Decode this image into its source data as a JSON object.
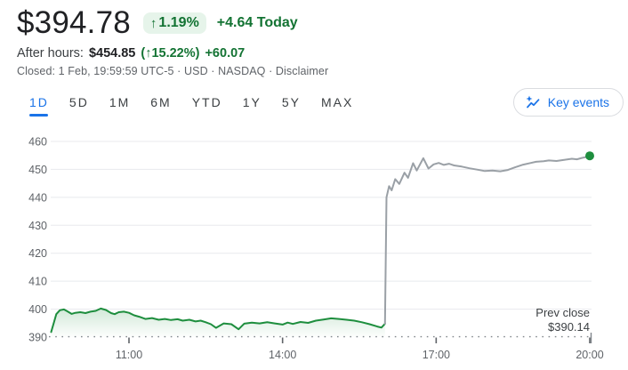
{
  "header": {
    "price": "$394.78",
    "badge": {
      "arrow": "↑",
      "percent": "1.19%"
    },
    "change_today": "+4.64 Today",
    "after_hours_label": "After hours:",
    "after_hours_price": "$454.85",
    "after_hours_pct": "(↑15.22%)",
    "after_hours_abs": "+60.07",
    "status_text": "Closed: 1 Feb, 19:59:59 UTC-5 · USD · NASDAQ · ",
    "disclaimer": "Disclaimer"
  },
  "tabs": [
    {
      "label": "1D",
      "active": true
    },
    {
      "label": "5D",
      "active": false
    },
    {
      "label": "1M",
      "active": false
    },
    {
      "label": "6M",
      "active": false
    },
    {
      "label": "YTD",
      "active": false
    },
    {
      "label": "1Y",
      "active": false
    },
    {
      "label": "5Y",
      "active": false
    },
    {
      "label": "MAX",
      "active": false
    }
  ],
  "key_events": {
    "label": "Key events"
  },
  "colors": {
    "accent_blue": "#1a73e8",
    "green_text": "#137333",
    "badge_bg": "#e6f4ea",
    "line_green": "#1e8e3e",
    "line_gray": "#9aa0a6",
    "grid": "#e8eaed",
    "axis_text": "#5f6368"
  },
  "chart_data": {
    "type": "line",
    "x_axis": {
      "unit": "hour_of_day",
      "range": [
        9.47,
        20
      ],
      "ticks": [
        {
          "t": 11,
          "label": "11:00"
        },
        {
          "t": 14,
          "label": "14:00"
        },
        {
          "t": 17,
          "label": "17:00"
        },
        {
          "t": 20,
          "label": "20:00"
        }
      ]
    },
    "y_axis": {
      "range": [
        390,
        462
      ],
      "ticks": [
        390,
        400,
        410,
        420,
        430,
        440,
        450,
        460
      ]
    },
    "grid": true,
    "prev_close": {
      "label": "Prev close",
      "display": "$390.14",
      "value": 390.14
    },
    "series": [
      {
        "name": "regular-session",
        "color": "#1e8e3e",
        "area": true,
        "points": [
          [
            9.48,
            391.8
          ],
          [
            9.53,
            395.0
          ],
          [
            9.58,
            398.2
          ],
          [
            9.65,
            399.6
          ],
          [
            9.73,
            399.9
          ],
          [
            9.8,
            399.2
          ],
          [
            9.88,
            398.3
          ],
          [
            9.95,
            398.7
          ],
          [
            10.05,
            398.9
          ],
          [
            10.15,
            398.6
          ],
          [
            10.25,
            399.1
          ],
          [
            10.35,
            399.4
          ],
          [
            10.45,
            400.2
          ],
          [
            10.55,
            399.7
          ],
          [
            10.65,
            398.6
          ],
          [
            10.72,
            398.2
          ],
          [
            10.8,
            398.9
          ],
          [
            10.9,
            399.1
          ],
          [
            11.0,
            398.7
          ],
          [
            11.1,
            397.8
          ],
          [
            11.2,
            397.3
          ],
          [
            11.32,
            396.5
          ],
          [
            11.45,
            396.8
          ],
          [
            11.58,
            396.2
          ],
          [
            11.7,
            396.5
          ],
          [
            11.82,
            396.1
          ],
          [
            11.95,
            396.4
          ],
          [
            12.05,
            395.9
          ],
          [
            12.18,
            396.2
          ],
          [
            12.3,
            395.6
          ],
          [
            12.4,
            395.9
          ],
          [
            12.5,
            395.3
          ],
          [
            12.6,
            394.6
          ],
          [
            12.7,
            393.3
          ],
          [
            12.85,
            394.9
          ],
          [
            13.0,
            394.6
          ],
          [
            13.14,
            392.8
          ],
          [
            13.25,
            394.8
          ],
          [
            13.4,
            395.2
          ],
          [
            13.55,
            394.9
          ],
          [
            13.7,
            395.3
          ],
          [
            13.85,
            394.9
          ],
          [
            14.0,
            394.5
          ],
          [
            14.1,
            395.2
          ],
          [
            14.2,
            394.7
          ],
          [
            14.35,
            395.4
          ],
          [
            14.5,
            395.1
          ],
          [
            14.65,
            395.9
          ],
          [
            14.8,
            396.3
          ],
          [
            14.95,
            396.7
          ],
          [
            15.1,
            396.5
          ],
          [
            15.25,
            396.2
          ],
          [
            15.4,
            395.9
          ],
          [
            15.55,
            395.3
          ],
          [
            15.7,
            394.6
          ],
          [
            15.85,
            393.8
          ],
          [
            15.93,
            393.4
          ],
          [
            16.0,
            394.78
          ]
        ]
      },
      {
        "name": "after-hours",
        "color": "#9aa0a6",
        "area": false,
        "points": [
          [
            16.0,
            394.78
          ],
          [
            16.03,
            440.0
          ],
          [
            16.08,
            444.0
          ],
          [
            16.13,
            442.5
          ],
          [
            16.2,
            446.5
          ],
          [
            16.28,
            444.8
          ],
          [
            16.38,
            448.8
          ],
          [
            16.45,
            447.0
          ],
          [
            16.55,
            452.2
          ],
          [
            16.62,
            449.6
          ],
          [
            16.75,
            454.0
          ],
          [
            16.85,
            450.3
          ],
          [
            16.95,
            451.8
          ],
          [
            17.05,
            452.3
          ],
          [
            17.15,
            451.6
          ],
          [
            17.25,
            452.0
          ],
          [
            17.35,
            451.4
          ],
          [
            17.5,
            451.0
          ],
          [
            17.65,
            450.4
          ],
          [
            17.8,
            449.9
          ],
          [
            17.95,
            449.4
          ],
          [
            18.1,
            449.6
          ],
          [
            18.25,
            449.3
          ],
          [
            18.4,
            449.8
          ],
          [
            18.55,
            450.8
          ],
          [
            18.7,
            451.7
          ],
          [
            18.85,
            452.3
          ],
          [
            18.95,
            452.7
          ],
          [
            19.1,
            452.9
          ],
          [
            19.2,
            453.2
          ],
          [
            19.35,
            453.0
          ],
          [
            19.5,
            453.4
          ],
          [
            19.65,
            453.8
          ],
          [
            19.75,
            453.6
          ],
          [
            19.85,
            454.1
          ],
          [
            19.95,
            454.5
          ],
          [
            20.0,
            454.85
          ]
        ]
      }
    ],
    "end_marker": {
      "t": 20.0,
      "value": 454.85,
      "color": "#1e8e3e"
    }
  }
}
